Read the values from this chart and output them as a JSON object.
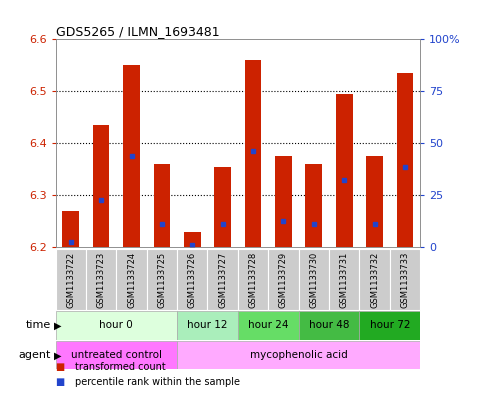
{
  "title": "GDS5265 / ILMN_1693481",
  "samples": [
    "GSM1133722",
    "GSM1133723",
    "GSM1133724",
    "GSM1133725",
    "GSM1133726",
    "GSM1133727",
    "GSM1133728",
    "GSM1133729",
    "GSM1133730",
    "GSM1133731",
    "GSM1133732",
    "GSM1133733"
  ],
  "bar_bottoms": [
    6.2,
    6.2,
    6.2,
    6.2,
    6.2,
    6.2,
    6.2,
    6.2,
    6.2,
    6.2,
    6.2,
    6.2
  ],
  "bar_tops": [
    6.27,
    6.435,
    6.55,
    6.36,
    6.23,
    6.355,
    6.56,
    6.375,
    6.36,
    6.495,
    6.375,
    6.535
  ],
  "percentile_values": [
    6.21,
    6.29,
    6.375,
    6.245,
    6.205,
    6.245,
    6.385,
    6.25,
    6.245,
    6.33,
    6.245,
    6.355
  ],
  "ylim": [
    6.2,
    6.6
  ],
  "yticks": [
    6.2,
    6.3,
    6.4,
    6.5,
    6.6
  ],
  "right_ytick_labels": [
    "0",
    "25",
    "50",
    "75",
    "100%"
  ],
  "bar_color": "#cc2200",
  "percentile_color": "#2244cc",
  "bg_color": "#ffffff",
  "plot_bg_color": "#ffffff",
  "time_groups": [
    {
      "label": "hour 0",
      "start": 0,
      "end": 4,
      "color": "#ddffdd"
    },
    {
      "label": "hour 12",
      "start": 4,
      "end": 6,
      "color": "#aaeebb"
    },
    {
      "label": "hour 24",
      "start": 6,
      "end": 8,
      "color": "#66dd66"
    },
    {
      "label": "hour 48",
      "start": 8,
      "end": 10,
      "color": "#44bb44"
    },
    {
      "label": "hour 72",
      "start": 10,
      "end": 12,
      "color": "#22aa22"
    }
  ],
  "agent_groups": [
    {
      "label": "untreated control",
      "start": 0,
      "end": 4,
      "color": "#ff77ff"
    },
    {
      "label": "mycophenolic acid",
      "start": 4,
      "end": 12,
      "color": "#ffaaff"
    }
  ],
  "ylabel_color_left": "#cc2200",
  "ylabel_color_right": "#2244cc",
  "tick_label_bg": "#cccccc",
  "legend_items": [
    {
      "label": "transformed count",
      "color": "#cc2200"
    },
    {
      "label": "percentile rank within the sample",
      "color": "#2244cc"
    }
  ]
}
